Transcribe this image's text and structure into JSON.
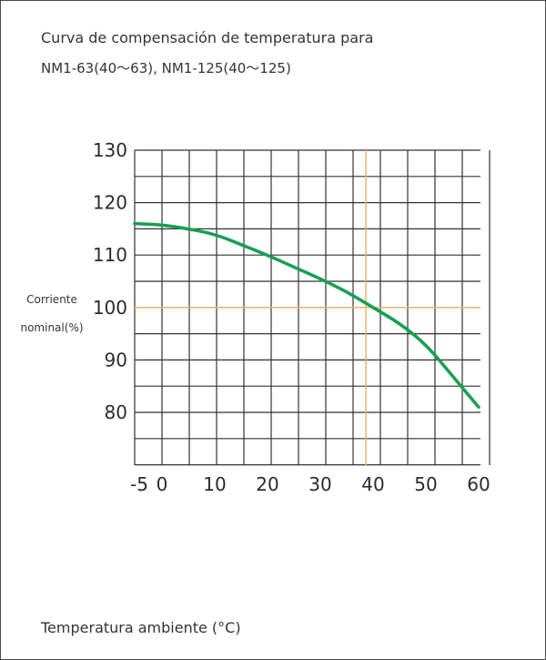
{
  "title": {
    "line1": "Curva de compensación de temperatura para",
    "line2": "NM1-63(40～63), NM1-125(40～125)"
  },
  "axis": {
    "ylabel_line1": "Corriente",
    "ylabel_line2": "nominal(%)",
    "xlabel": "Temperatura ambiente (°C)"
  },
  "chart_data": {
    "type": "line",
    "title": "Curva de compensación de temperatura para NM1-63(40～63), NM1-125(40～125)",
    "xlabel": "Temperatura ambiente (°C)",
    "ylabel": "Corriente nominal(%)",
    "x_ticks": [
      "-5",
      "0",
      "10",
      "20",
      "30",
      "40",
      "50",
      "60"
    ],
    "y_ticks": [
      "130",
      "120",
      "110",
      "100",
      "90",
      "80"
    ],
    "xlim": [
      -5,
      60
    ],
    "ylim": [
      70,
      130
    ],
    "grid": true,
    "series": [
      {
        "color": "#15a050",
        "x": [
          -5,
          0,
          5,
          10,
          15,
          20,
          25,
          30,
          35,
          40,
          45,
          50,
          55,
          60
        ],
        "y": [
          116,
          115.8,
          115,
          114,
          112,
          110,
          107.7,
          105.5,
          103,
          100,
          97,
          93,
          87,
          81
        ]
      }
    ],
    "reference_lines": [
      {
        "axis": "y",
        "value": 100,
        "color": "#f0b070"
      },
      {
        "axis": "x",
        "value": 40,
        "color": "#f0b070"
      }
    ]
  }
}
